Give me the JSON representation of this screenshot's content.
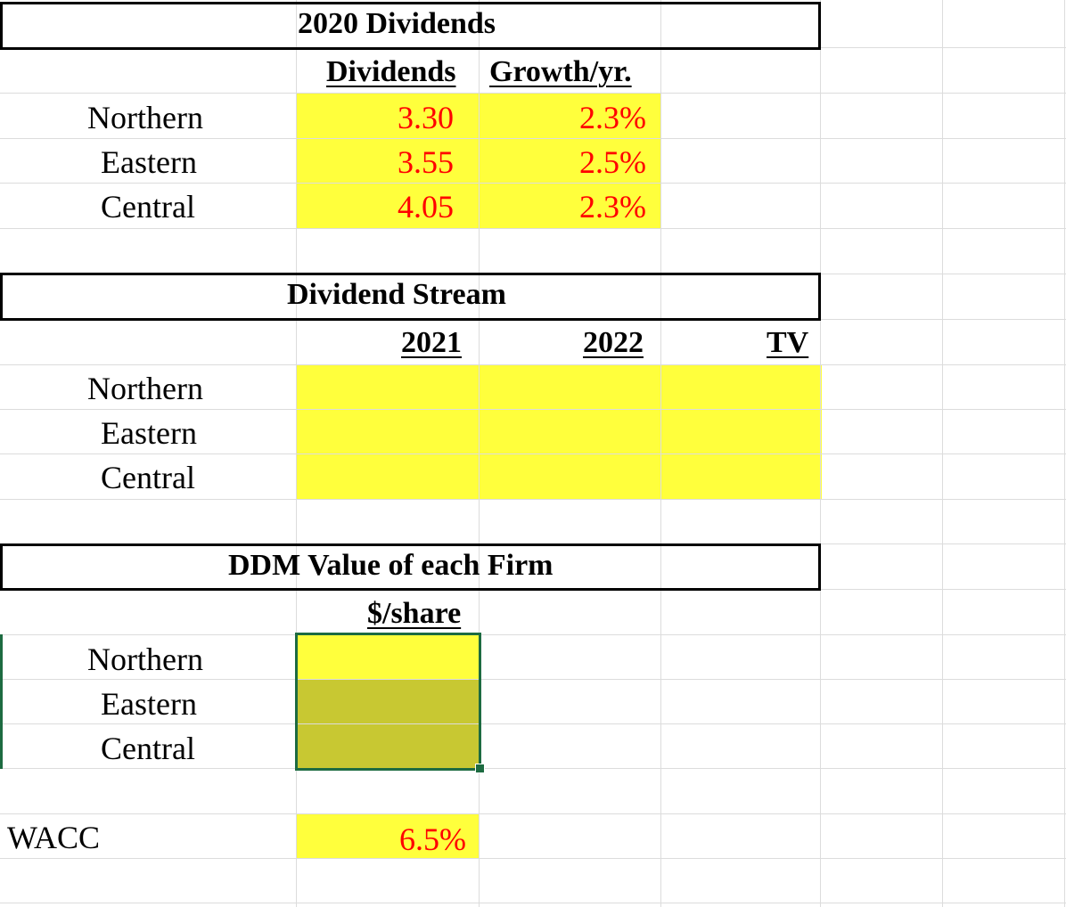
{
  "sections": {
    "dividends_2020": {
      "title": "2020 Dividends",
      "headers": [
        "Dividends",
        "Growth/yr."
      ],
      "rows": [
        {
          "label": "Northern",
          "dividend": "3.30",
          "growth": "2.3%"
        },
        {
          "label": "Eastern",
          "dividend": "3.55",
          "growth": "2.5%"
        },
        {
          "label": "Central",
          "dividend": "4.05",
          "growth": "2.3%"
        }
      ]
    },
    "dividend_stream": {
      "title": "Dividend Stream",
      "headers": [
        "2021",
        "2022",
        "TV"
      ],
      "rows": [
        {
          "label": "Northern"
        },
        {
          "label": "Eastern"
        },
        {
          "label": "Central"
        }
      ]
    },
    "ddm_value": {
      "title": "DDM Value of each Firm",
      "header": "$/share",
      "rows": [
        {
          "label": "Northern"
        },
        {
          "label": "Eastern"
        },
        {
          "label": "Central"
        }
      ]
    },
    "wacc": {
      "label": "WACC",
      "value": "6.5%"
    }
  },
  "colors": {
    "input_fill": "#ffff3c",
    "selected_fill": "#c8c832",
    "value_text": "#ff0000",
    "selection_border": "#1d6b41",
    "gridline": "#dcdcdc"
  }
}
